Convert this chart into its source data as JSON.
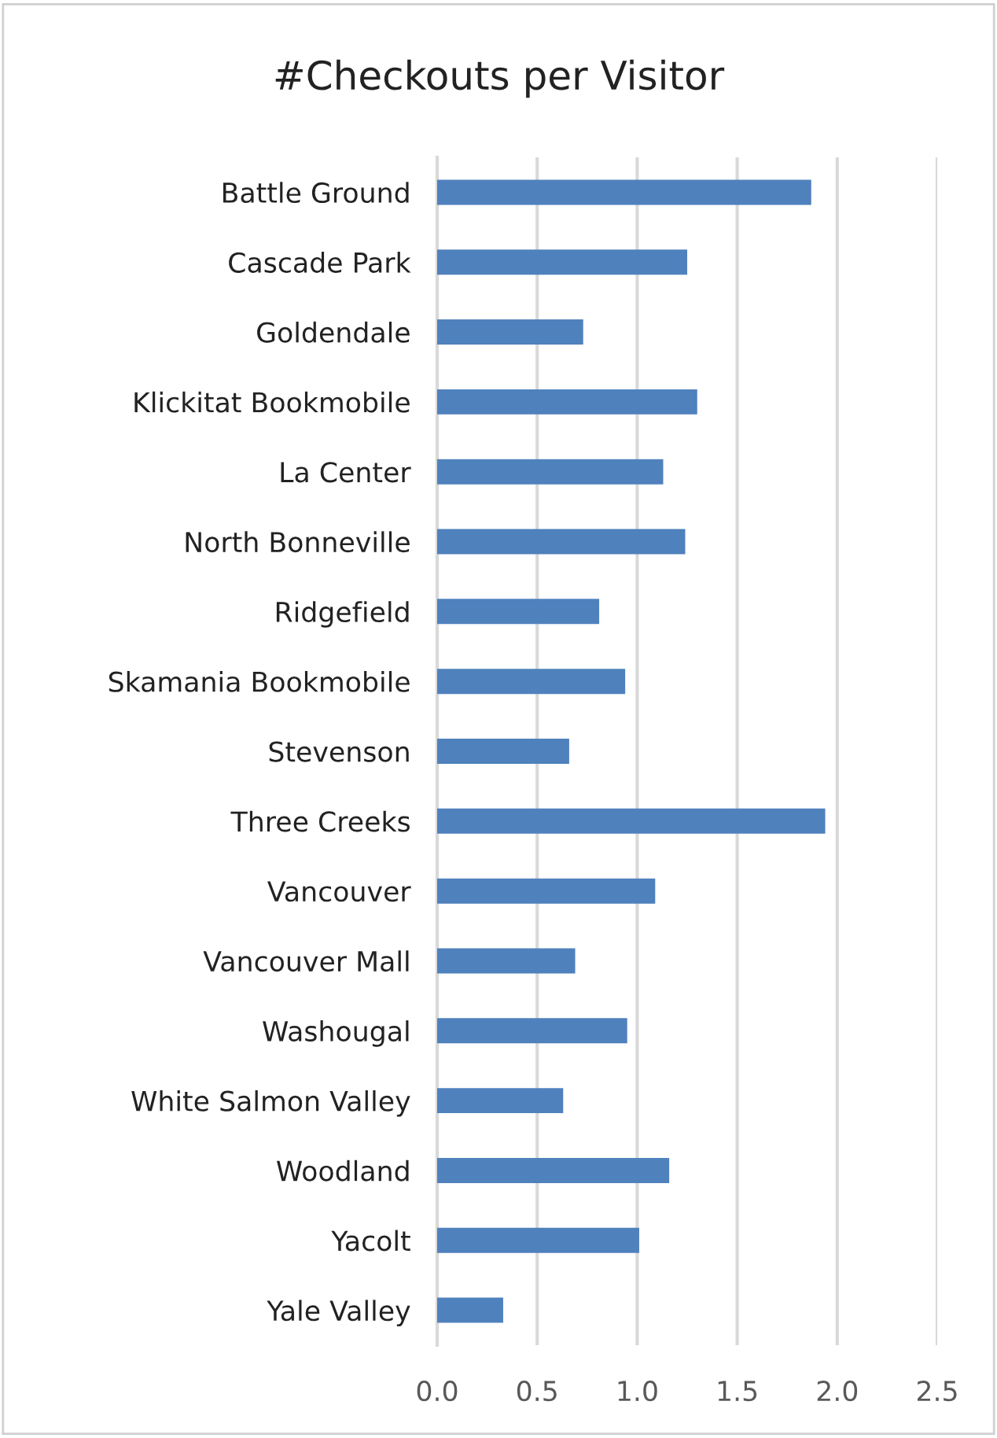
{
  "chart_data": {
    "type": "bar",
    "orientation": "horizontal",
    "title": "#Checkouts per Visitor",
    "categories": [
      "Battle Ground",
      "Cascade Park",
      "Goldendale",
      "Klickitat Bookmobile",
      "La Center",
      "North Bonneville",
      "Ridgefield",
      "Skamania Bookmobile",
      "Stevenson",
      "Three Creeks",
      "Vancouver",
      "Vancouver Mall",
      "Washougal",
      "White Salmon Valley",
      "Woodland",
      "Yacolt",
      "Yale Valley"
    ],
    "values": [
      1.87,
      1.25,
      0.73,
      1.3,
      1.13,
      1.24,
      0.81,
      0.94,
      0.66,
      1.94,
      1.09,
      0.69,
      0.95,
      0.63,
      1.16,
      1.01,
      0.33
    ],
    "color": "#4f81bd",
    "xlim": [
      0,
      2.5
    ],
    "xticks": [
      {
        "value": 0,
        "label": "0.0"
      },
      {
        "value": 0.5,
        "label": "0.5"
      },
      {
        "value": 1,
        "label": "1.0"
      },
      {
        "value": 1.5,
        "label": "1.5"
      },
      {
        "value": 2,
        "label": "2.0"
      },
      {
        "value": 2.5,
        "label": "2.5"
      }
    ],
    "grid": "x",
    "legend": false
  }
}
